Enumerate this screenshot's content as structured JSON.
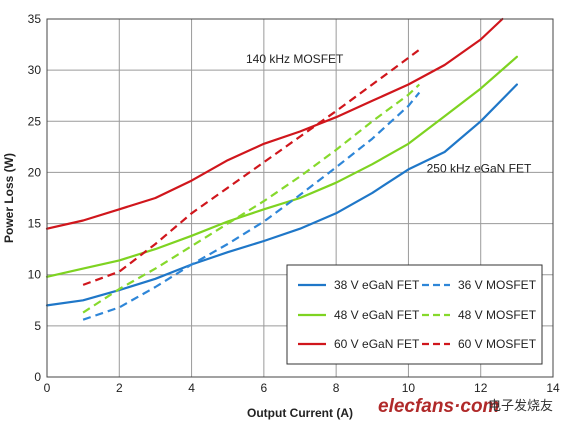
{
  "chart_data": {
    "type": "line",
    "title": "",
    "xlabel": "Output Current (A)",
    "ylabel": "Power Loss (W)",
    "xlim": [
      0,
      14
    ],
    "ylim": [
      0,
      35
    ],
    "x_ticks": [
      "0",
      "2",
      "4",
      "6",
      "8",
      "10",
      "12",
      "14"
    ],
    "y_ticks": [
      "0",
      "5",
      "10",
      "15",
      "20",
      "25",
      "30",
      "35"
    ],
    "grid": true,
    "legend_position": "bottom-right",
    "series": [
      {
        "name": "38 V eGaN FET",
        "color": "#1f77c8",
        "style": "solid",
        "points": [
          [
            0,
            7
          ],
          [
            1,
            7.5
          ],
          [
            2,
            8.5
          ],
          [
            3,
            9.6
          ],
          [
            4,
            11
          ],
          [
            5,
            12.2
          ],
          [
            6,
            13.3
          ],
          [
            7,
            14.5
          ],
          [
            8,
            16
          ],
          [
            9,
            18
          ],
          [
            10,
            20.3
          ],
          [
            11,
            22
          ],
          [
            12,
            25
          ],
          [
            13,
            28.6
          ]
        ]
      },
      {
        "name": "48 V eGaN FET",
        "color": "#7ed321",
        "style": "solid",
        "points": [
          [
            0,
            9.8
          ],
          [
            1,
            10.6
          ],
          [
            2,
            11.4
          ],
          [
            3,
            12.5
          ],
          [
            4,
            13.8
          ],
          [
            5,
            15.2
          ],
          [
            6,
            16.4
          ],
          [
            7,
            17.5
          ],
          [
            8,
            19
          ],
          [
            9,
            20.8
          ],
          [
            10,
            22.8
          ],
          [
            11,
            25.5
          ],
          [
            12,
            28.2
          ],
          [
            13,
            31.3
          ]
        ]
      },
      {
        "name": "60 V eGaN FET",
        "color": "#d0161c",
        "style": "solid",
        "points": [
          [
            0,
            14.5
          ],
          [
            1,
            15.3
          ],
          [
            2,
            16.4
          ],
          [
            3,
            17.5
          ],
          [
            4,
            19.2
          ],
          [
            5,
            21.2
          ],
          [
            6,
            22.8
          ],
          [
            7,
            24
          ],
          [
            8,
            25.4
          ],
          [
            9,
            27
          ],
          [
            10,
            28.6
          ],
          [
            11,
            30.5
          ],
          [
            12,
            33
          ],
          [
            12.6,
            35
          ]
        ]
      },
      {
        "name": "36 V MOSFET",
        "color": "#2e86d8",
        "style": "dashed",
        "points": [
          [
            1,
            5.6
          ],
          [
            2,
            6.8
          ],
          [
            3,
            8.8
          ],
          [
            4,
            11
          ],
          [
            5,
            13
          ],
          [
            6,
            15.2
          ],
          [
            7,
            17.8
          ],
          [
            8,
            20.5
          ],
          [
            9,
            23.3
          ],
          [
            10,
            26.5
          ],
          [
            10.3,
            27.8
          ]
        ]
      },
      {
        "name": "48 V MOSFET",
        "color": "#86d92c",
        "style": "dashed",
        "points": [
          [
            1,
            6.3
          ],
          [
            2,
            8.6
          ],
          [
            3,
            10.6
          ],
          [
            4,
            12.8
          ],
          [
            5,
            15
          ],
          [
            6,
            17.2
          ],
          [
            7,
            19.6
          ],
          [
            8,
            22.2
          ],
          [
            9,
            25
          ],
          [
            10,
            27.6
          ],
          [
            10.3,
            28.6
          ]
        ]
      },
      {
        "name": "60 V MOSFET",
        "color": "#d0161c",
        "style": "dashed",
        "points": [
          [
            1,
            9
          ],
          [
            2,
            10.3
          ],
          [
            3,
            13
          ],
          [
            4,
            16
          ],
          [
            5,
            18.5
          ],
          [
            6,
            21
          ],
          [
            7,
            23.5
          ],
          [
            8,
            26
          ],
          [
            9,
            28.6
          ],
          [
            10,
            31.2
          ],
          [
            10.3,
            32
          ]
        ]
      }
    ],
    "annotations": [
      {
        "text": "140 kHz MOSFET",
        "x": 8.2,
        "y": 30.7
      },
      {
        "text": "250 kHz eGaN FET",
        "x": 13.4,
        "y": 20
      }
    ]
  },
  "watermark": {
    "latin": "elecfans·com",
    "chinese": "电子发烧友"
  }
}
